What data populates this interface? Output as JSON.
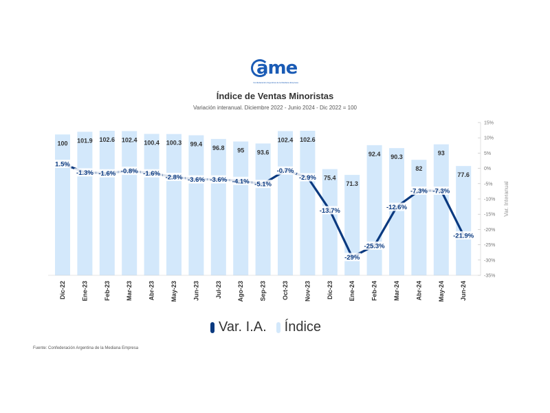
{
  "logo": {
    "text": "ame",
    "subtext": "Confederación Argentina de la Mediana Empresa"
  },
  "header": {
    "title": "Índice de Ventas Minoristas",
    "subtitle": "Variación interanual. Diciembre 2022 - Junio 2024 - Dic 2022 = 100"
  },
  "source": "Fuente: Confederación Argentina de la Mediana Empresa",
  "chart_data": {
    "type": "bar",
    "title": "Índice de Ventas Minoristas",
    "subtitle": "Variación interanual. Diciembre 2022 - Junio 2024 - Dic 2022 = 100",
    "categories": [
      "Dic-22",
      "Ene-23",
      "Feb-23",
      "Mar-23",
      "Abr-23",
      "May-23",
      "Jun-23",
      "Jul-23",
      "Ago-23",
      "Sep-23",
      "Oct-23",
      "Nov-23",
      "Dic-23",
      "Ene-24",
      "Feb-24",
      "Mar-24",
      "Abr-24",
      "May-24",
      "Jun-24"
    ],
    "series": [
      {
        "name": "Índice",
        "type": "bar",
        "color": "#d3e8fb",
        "values": [
          100,
          101.9,
          102.6,
          102.4,
          100.4,
          100.3,
          99.4,
          96.8,
          95,
          93.6,
          102.4,
          102.6,
          75.4,
          71.3,
          92.4,
          90.3,
          82,
          93,
          77.6
        ],
        "labels": [
          "100",
          "101.9",
          "102.6",
          "102.4",
          "100.4",
          "100.3",
          "99.4",
          "96.8",
          "95",
          "93.6",
          "102.4",
          "102.6",
          "75.4",
          "71.3",
          "92.4",
          "90.3",
          "82",
          "93",
          "77.6"
        ]
      },
      {
        "name": "Var. I.A.",
        "type": "line",
        "axis": "right",
        "color": "#0b3a80",
        "values": [
          1.5,
          -1.3,
          -1.6,
          -0.8,
          -1.6,
          -2.8,
          -3.6,
          -3.6,
          -4.1,
          -5.1,
          -0.7,
          -2.9,
          -13.7,
          -29,
          -25.3,
          -12.6,
          -7.3,
          -7.3,
          -21.9
        ],
        "labels": [
          "1.5%",
          "-1.3%",
          "-1.6%",
          "-0.8%",
          "-1.6%",
          "-2.8%",
          "-3.6%",
          "-3.6%",
          "-4.1%",
          "-5.1%",
          "-0.7%",
          "-2.9%",
          "-13.7%",
          "-29%",
          "-25.3%",
          "-12.6%",
          "-7.3%",
          "-7.3%",
          "-21.9%"
        ]
      }
    ],
    "y_right": {
      "label": "Var. Interanual",
      "range": [
        -35,
        15
      ],
      "ticks": [
        "15%",
        "10%",
        "5%",
        "0%",
        "-5%",
        "-10%",
        "-15%",
        "-20%",
        "-25%",
        "-30%",
        "-35%"
      ]
    },
    "grid": false,
    "legend_position": "bottom"
  }
}
